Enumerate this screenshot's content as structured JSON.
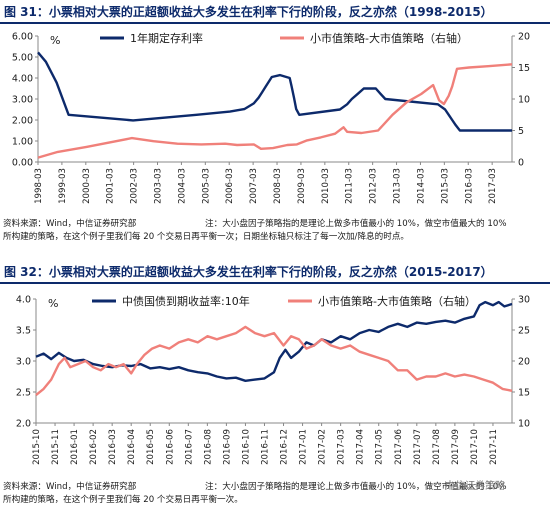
{
  "chart_data": [
    {
      "type": "line",
      "figure_label": "图 31：",
      "title": "小票相对大票的正超额收益大多发生在利率下行的阶段，反之亦然（1998-2015）",
      "left_unit": "%",
      "ylim_left": [
        0,
        6
      ],
      "ylim_right": [
        0,
        20
      ],
      "left_ticks": [
        "0.00",
        "1.00",
        "2.00",
        "3.00",
        "4.00",
        "5.00",
        "6.00"
      ],
      "right_ticks": [
        "0",
        "5",
        "10",
        "15",
        "20"
      ],
      "x_ticks": [
        "1998-03",
        "1999-03",
        "2000-03",
        "2001-03",
        "2002-03",
        "2003-03",
        "2004-03",
        "2005-03",
        "2006-03",
        "2007-03",
        "2008-03",
        "2009-03",
        "2010-03",
        "2011-03",
        "2012-03",
        "2013-03",
        "2014-03",
        "2015-03",
        "2016-03",
        "2017-03"
      ],
      "x_range": [
        1998.17,
        2018.0
      ],
      "series": [
        {
          "name": "1年期定存利率",
          "axis": "left",
          "color": "#0d2a6b",
          "points": [
            [
              1998.17,
              5.22
            ],
            [
              1998.5,
              4.77
            ],
            [
              1998.95,
              3.78
            ],
            [
              1999.45,
              2.25
            ],
            [
              2002.15,
              1.98
            ],
            [
              2004.8,
              2.25
            ],
            [
              2006.2,
              2.4
            ],
            [
              2006.8,
              2.52
            ],
            [
              2007.2,
              2.79
            ],
            [
              2007.4,
              3.06
            ],
            [
              2007.55,
              3.33
            ],
            [
              2007.7,
              3.6
            ],
            [
              2007.95,
              4.05
            ],
            [
              2008.3,
              4.14
            ],
            [
              2008.7,
              4.0
            ],
            [
              2008.78,
              3.6
            ],
            [
              2008.88,
              3.06
            ],
            [
              2008.97,
              2.52
            ],
            [
              2009.1,
              2.25
            ],
            [
              2010.8,
              2.5
            ],
            [
              2011.1,
              2.75
            ],
            [
              2011.3,
              3.0
            ],
            [
              2011.55,
              3.25
            ],
            [
              2011.8,
              3.5
            ],
            [
              2012.3,
              3.5
            ],
            [
              2012.5,
              3.25
            ],
            [
              2012.7,
              3.0
            ],
            [
              2014.9,
              2.75
            ],
            [
              2015.2,
              2.5
            ],
            [
              2015.35,
              2.25
            ],
            [
              2015.5,
              2.0
            ],
            [
              2015.65,
              1.75
            ],
            [
              2015.82,
              1.5
            ],
            [
              2018.0,
              1.5
            ]
          ]
        },
        {
          "name": "小市值策略-大市值策略（右轴）",
          "axis": "right",
          "color": "#f0807a",
          "points": [
            [
              1998.17,
              0.7
            ],
            [
              1999.0,
              1.6
            ],
            [
              2000.2,
              2.4
            ],
            [
              2002.1,
              3.8
            ],
            [
              2003.0,
              3.3
            ],
            [
              2004.0,
              2.9
            ],
            [
              2005.0,
              2.8
            ],
            [
              2006.0,
              2.9
            ],
            [
              2006.5,
              2.7
            ],
            [
              2007.2,
              2.8
            ],
            [
              2007.5,
              2.1
            ],
            [
              2008.0,
              2.2
            ],
            [
              2008.6,
              2.7
            ],
            [
              2009.0,
              2.8
            ],
            [
              2009.4,
              3.4
            ],
            [
              2010.0,
              3.9
            ],
            [
              2010.6,
              4.5
            ],
            [
              2010.95,
              5.5
            ],
            [
              2011.1,
              4.8
            ],
            [
              2011.7,
              4.6
            ],
            [
              2012.4,
              5.0
            ],
            [
              2013.0,
              7.5
            ],
            [
              2013.6,
              9.5
            ],
            [
              2014.2,
              10.8
            ],
            [
              2014.7,
              12.2
            ],
            [
              2014.95,
              9.8
            ],
            [
              2015.15,
              9.2
            ],
            [
              2015.35,
              10.5
            ],
            [
              2015.5,
              12.0
            ],
            [
              2015.7,
              14.8
            ],
            [
              2016.2,
              15.0
            ],
            [
              2017.0,
              15.2
            ],
            [
              2018.0,
              15.5
            ]
          ]
        }
      ],
      "source_note": "资料来源：Wind，中信证券研究部",
      "desc_note": "注：大小盘因子策略指的是理论上做多市值最小的 10%，做空市值最大的 10%",
      "note_line2": "所构建的策略，在这个例子里我们每 20 个交易日再平衡一次；日期坐标轴只标注了每一次加/降息的时点。"
    },
    {
      "type": "line",
      "figure_label": "图 32：",
      "title": "小票相对大票的正超额收益大多发生在利率下行的阶段，反之亦然（2015-2017）",
      "left_unit": "%",
      "ylim_left": [
        2.0,
        4.0
      ],
      "ylim_right": [
        10,
        30
      ],
      "left_ticks": [
        "2.0",
        "2.5",
        "3.0",
        "3.5",
        "4.0"
      ],
      "right_ticks": [
        "10",
        "15",
        "20",
        "25",
        "30"
      ],
      "x_ticks": [
        "2015-10",
        "2015-11",
        "2016-01",
        "2016-02",
        "2016-03",
        "2016-04",
        "2016-05",
        "2016-06",
        "2016-07",
        "2016-08",
        "2016-09",
        "2016-10",
        "2016-11",
        "2016-12",
        "2017-01",
        "2017-02",
        "2017-03",
        "2017-04",
        "2017-05",
        "2017-06",
        "2017-07",
        "2017-08",
        "2017-09",
        "2017-10",
        "2017-11"
      ],
      "x_range": [
        0,
        25
      ],
      "series": [
        {
          "name": "中债国债到期收益率:10年",
          "axis": "left",
          "color": "#0d2a6b",
          "points": [
            [
              0.0,
              3.07
            ],
            [
              0.4,
              3.12
            ],
            [
              0.8,
              3.03
            ],
            [
              1.2,
              3.13
            ],
            [
              1.6,
              3.05
            ],
            [
              2.0,
              3.0
            ],
            [
              2.5,
              3.02
            ],
            [
              3.0,
              2.95
            ],
            [
              3.5,
              2.92
            ],
            [
              4.0,
              2.9
            ],
            [
              4.5,
              2.93
            ],
            [
              5.0,
              2.92
            ],
            [
              5.5,
              2.95
            ],
            [
              6.0,
              2.88
            ],
            [
              6.5,
              2.9
            ],
            [
              7.0,
              2.87
            ],
            [
              7.5,
              2.9
            ],
            [
              8.0,
              2.85
            ],
            [
              8.5,
              2.82
            ],
            [
              9.0,
              2.8
            ],
            [
              9.5,
              2.75
            ],
            [
              10.0,
              2.72
            ],
            [
              10.5,
              2.73
            ],
            [
              11.0,
              2.68
            ],
            [
              11.5,
              2.7
            ],
            [
              12.0,
              2.72
            ],
            [
              12.5,
              2.82
            ],
            [
              12.8,
              3.05
            ],
            [
              13.1,
              3.18
            ],
            [
              13.4,
              3.05
            ],
            [
              13.8,
              3.15
            ],
            [
              14.2,
              3.3
            ],
            [
              14.6,
              3.25
            ],
            [
              15.0,
              3.35
            ],
            [
              15.5,
              3.3
            ],
            [
              16.0,
              3.4
            ],
            [
              16.5,
              3.35
            ],
            [
              17.0,
              3.45
            ],
            [
              17.5,
              3.5
            ],
            [
              18.0,
              3.47
            ],
            [
              18.5,
              3.55
            ],
            [
              19.0,
              3.6
            ],
            [
              19.5,
              3.55
            ],
            [
              20.0,
              3.62
            ],
            [
              20.5,
              3.6
            ],
            [
              21.0,
              3.63
            ],
            [
              21.5,
              3.65
            ],
            [
              22.0,
              3.62
            ],
            [
              22.5,
              3.68
            ],
            [
              23.0,
              3.72
            ],
            [
              23.3,
              3.9
            ],
            [
              23.6,
              3.95
            ],
            [
              24.0,
              3.9
            ],
            [
              24.3,
              3.95
            ],
            [
              24.6,
              3.88
            ],
            [
              25.0,
              3.92
            ]
          ]
        },
        {
          "name": "小市值策略-大市值策略（右轴）",
          "axis": "right",
          "color": "#f0807a",
          "points": [
            [
              0.0,
              14.5
            ],
            [
              0.4,
              15.5
            ],
            [
              0.8,
              17.0
            ],
            [
              1.2,
              19.5
            ],
            [
              1.5,
              20.5
            ],
            [
              1.8,
              19.0
            ],
            [
              2.2,
              19.5
            ],
            [
              2.6,
              20.0
            ],
            [
              3.0,
              19.0
            ],
            [
              3.4,
              18.5
            ],
            [
              3.8,
              19.5
            ],
            [
              4.2,
              19.0
            ],
            [
              4.6,
              19.5
            ],
            [
              5.0,
              18.0
            ],
            [
              5.3,
              19.5
            ],
            [
              5.7,
              21.0
            ],
            [
              6.1,
              22.0
            ],
            [
              6.5,
              22.5
            ],
            [
              7.0,
              22.0
            ],
            [
              7.5,
              23.0
            ],
            [
              8.0,
              23.5
            ],
            [
              8.5,
              23.0
            ],
            [
              9.0,
              24.0
            ],
            [
              9.5,
              23.5
            ],
            [
              10.0,
              24.0
            ],
            [
              10.5,
              24.5
            ],
            [
              11.0,
              25.5
            ],
            [
              11.5,
              24.5
            ],
            [
              12.0,
              24.0
            ],
            [
              12.5,
              24.5
            ],
            [
              13.0,
              22.5
            ],
            [
              13.4,
              24.0
            ],
            [
              13.8,
              23.5
            ],
            [
              14.2,
              22.0
            ],
            [
              14.6,
              22.5
            ],
            [
              15.0,
              23.5
            ],
            [
              15.5,
              22.5
            ],
            [
              16.0,
              22.0
            ],
            [
              16.5,
              22.5
            ],
            [
              17.0,
              21.5
            ],
            [
              17.5,
              21.0
            ],
            [
              18.0,
              20.5
            ],
            [
              18.5,
              20.0
            ],
            [
              19.0,
              18.5
            ],
            [
              19.5,
              18.5
            ],
            [
              20.0,
              17.0
            ],
            [
              20.5,
              17.5
            ],
            [
              21.0,
              17.5
            ],
            [
              21.5,
              18.0
            ],
            [
              22.0,
              17.5
            ],
            [
              22.5,
              17.8
            ],
            [
              23.0,
              17.5
            ],
            [
              23.5,
              17.0
            ],
            [
              24.0,
              16.5
            ],
            [
              24.5,
              15.5
            ],
            [
              25.0,
              15.2
            ]
          ]
        }
      ],
      "source_note": "资料来源：Wind，中信证券研究部",
      "desc_note": "注：大小盘因子策略指的是理论上做多市值最小的 10%，做空市值最大的 10%",
      "note_line2": "所构建的策略，在这个例子里我们每 20 个交易日再平衡一次。"
    }
  ],
  "watermark": "中信证券策略"
}
